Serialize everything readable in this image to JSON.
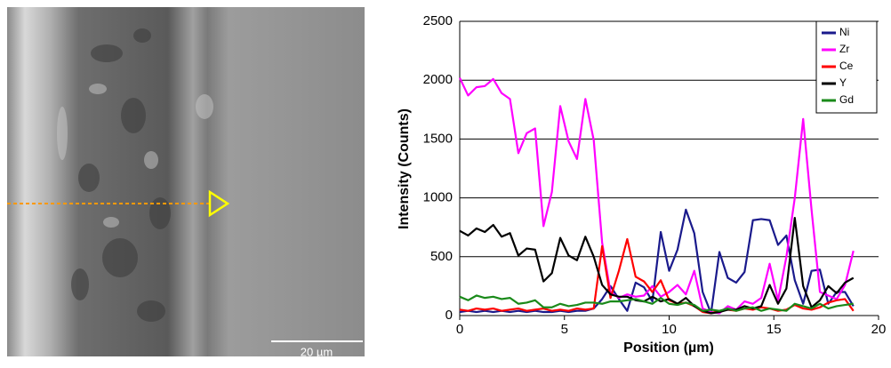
{
  "image": {
    "scale_bar": "20 µm"
  },
  "chart_data": {
    "type": "line",
    "xlabel": "Position (µm)",
    "ylabel": "Intensity (Counts)",
    "x": [
      0,
      0.4,
      0.8,
      1.2,
      1.6,
      2.0,
      2.4,
      2.8,
      3.2,
      3.6,
      4.0,
      4.4,
      4.8,
      5.2,
      5.6,
      6.0,
      6.4,
      6.8,
      7.2,
      7.6,
      8.0,
      8.4,
      8.8,
      9.2,
      9.6,
      10.0,
      10.4,
      10.8,
      11.2,
      11.6,
      12.0,
      12.4,
      12.8,
      13.2,
      13.6,
      14.0,
      14.4,
      14.8,
      15.2,
      15.6,
      16.0,
      16.4,
      16.8,
      17.2,
      17.6,
      18.0,
      18.4,
      18.8
    ],
    "xlim": [
      0,
      20
    ],
    "xticks": [
      0,
      5,
      10,
      15,
      20
    ],
    "ylim": [
      0,
      2500
    ],
    "yticks": [
      0,
      500,
      1000,
      1500,
      2000,
      2500
    ],
    "grid": true,
    "legend": "upper-right",
    "series": [
      {
        "name": "Ni",
        "color": "#1a1a8c",
        "values": [
          30,
          40,
          30,
          40,
          30,
          40,
          30,
          40,
          30,
          40,
          30,
          30,
          40,
          30,
          40,
          40,
          60,
          140,
          250,
          140,
          40,
          280,
          240,
          120,
          710,
          380,
          560,
          900,
          700,
          200,
          20,
          540,
          320,
          280,
          370,
          810,
          820,
          810,
          600,
          680,
          300,
          100,
          380,
          390,
          100,
          200,
          200,
          80
        ]
      },
      {
        "name": "Zr",
        "color": "#ff00ff",
        "values": [
          2020,
          1870,
          1940,
          1950,
          2010,
          1890,
          1840,
          1380,
          1550,
          1590,
          760,
          1050,
          1780,
          1480,
          1330,
          1840,
          1490,
          620,
          200,
          150,
          180,
          160,
          170,
          250,
          160,
          200,
          260,
          180,
          380,
          60,
          30,
          20,
          80,
          50,
          120,
          100,
          150,
          440,
          130,
          500,
          1000,
          1670,
          900,
          200,
          170,
          140,
          260,
          550
        ]
      },
      {
        "name": "Ce",
        "color": "#ff0000",
        "values": [
          50,
          40,
          60,
          50,
          60,
          40,
          50,
          60,
          40,
          50,
          60,
          40,
          50,
          40,
          60,
          50,
          60,
          590,
          150,
          380,
          650,
          330,
          290,
          200,
          300,
          130,
          100,
          110,
          80,
          30,
          20,
          40,
          50,
          40,
          60,
          50,
          70,
          60,
          40,
          50,
          90,
          60,
          50,
          70,
          110,
          130,
          140,
          40
        ]
      },
      {
        "name": "Y",
        "color": "#000000",
        "values": [
          720,
          680,
          740,
          710,
          770,
          670,
          700,
          510,
          570,
          560,
          290,
          360,
          660,
          510,
          470,
          670,
          500,
          260,
          180,
          160,
          160,
          130,
          120,
          160,
          120,
          140,
          100,
          150,
          80,
          40,
          20,
          30,
          50,
          50,
          80,
          60,
          80,
          260,
          100,
          230,
          830,
          250,
          70,
          130,
          250,
          190,
          280,
          320
        ]
      },
      {
        "name": "Gd",
        "color": "#1a8a1a",
        "values": [
          160,
          130,
          170,
          150,
          160,
          140,
          150,
          100,
          110,
          130,
          70,
          70,
          100,
          80,
          90,
          110,
          110,
          100,
          120,
          120,
          130,
          140,
          120,
          100,
          150,
          100,
          90,
          110,
          90,
          40,
          50,
          40,
          60,
          40,
          60,
          70,
          40,
          60,
          50,
          40,
          100,
          80,
          60,
          100,
          60,
          80,
          90,
          100
        ]
      }
    ]
  }
}
